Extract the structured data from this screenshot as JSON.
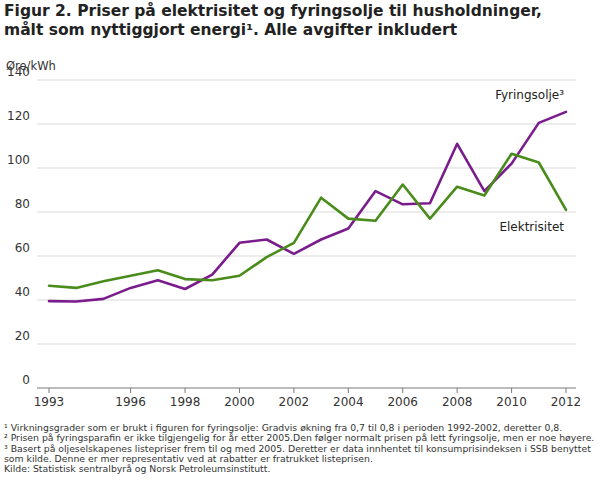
{
  "chart_data": {
    "type": "line",
    "title": "Figur 2. Priser på elektrisitet og fyringsolje til husholdninger, målt som nyttiggjort energi¹. Alle avgifter inkludert",
    "y_label": "Øre/kWh",
    "x": [
      1993,
      1994,
      1995,
      1996,
      1997,
      1998,
      1999,
      2000,
      2001,
      2002,
      2003,
      2004,
      2005,
      2006,
      2007,
      2008,
      2009,
      2010,
      2011,
      2012
    ],
    "series": [
      {
        "name": "Fyringsolje³",
        "color": "#7b1c8c",
        "values": [
          39.5,
          39.3,
          40.5,
          45.5,
          49,
          45,
          51.5,
          66,
          67.5,
          61,
          67.5,
          72.5,
          89.5,
          83.5,
          84,
          111,
          89.5,
          102,
          120.5,
          125.5
        ]
      },
      {
        "name": "Elektrisitet",
        "color": "#4a8c1c",
        "values": [
          46.5,
          45.5,
          48.5,
          51,
          53.5,
          49.5,
          49,
          51,
          59.5,
          66,
          86.5,
          77,
          76,
          92.5,
          77,
          91.5,
          87.5,
          106.5,
          102.5,
          81
        ]
      }
    ],
    "xlim": [
      1993,
      2012
    ],
    "xticks": [
      1993,
      1996,
      1998,
      2000,
      2002,
      2004,
      2006,
      2008,
      2010,
      2012
    ],
    "ylim": [
      0,
      140
    ],
    "yticks": [
      0,
      20,
      40,
      60,
      80,
      100,
      120,
      140
    ],
    "grid": true,
    "notes": [
      "¹ Virkningsgrader som er brukt i figuren for fyringsolje: Gradvis økning fra 0,7 til 0,8 i perioden 1992-2002, deretter 0,8.",
      "² Prisen på fyringsparafin er ikke tilgjengelig for år etter 2005.Den følger normalt prisen på lett fyringsolje, men er noe høyere.",
      "³ Basert på oljeselskapenes listepriser frem til og med 2005. Deretter er data innhentet til konsumprisindeksen i SSB benyttet som kilde. Denne er mer representativ ved at rabatter er fratrukket listeprisen.",
      "Kilde: Statistisk sentralbyrå og Norsk Petroleumsinstitutt."
    ]
  }
}
